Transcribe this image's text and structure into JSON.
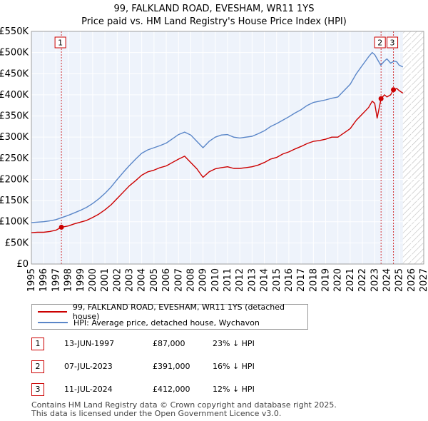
{
  "chart_data": {
    "type": "line",
    "title": "99, FALKLAND ROAD, EVESHAM, WR11 1YS",
    "subtitle": "Price paid vs. HM Land Registry's House Price Index (HPI)",
    "xlabel": "",
    "ylabel": "",
    "xlim": [
      1995,
      2027
    ],
    "ylim": [
      0,
      550000
    ],
    "grid": true,
    "x_ticks": [
      "1995",
      "1996",
      "1997",
      "1998",
      "1999",
      "2000",
      "2001",
      "2002",
      "2003",
      "2004",
      "2005",
      "2006",
      "2007",
      "2008",
      "2009",
      "2010",
      "2011",
      "2012",
      "2013",
      "2014",
      "2015",
      "2016",
      "2017",
      "2018",
      "2019",
      "2020",
      "2021",
      "2022",
      "2023",
      "2024",
      "2025",
      "2026",
      "2027"
    ],
    "y_ticks": [
      {
        "value": 0,
        "label": "£0"
      },
      {
        "value": 50000,
        "label": "£50K"
      },
      {
        "value": 100000,
        "label": "£100K"
      },
      {
        "value": 150000,
        "label": "£150K"
      },
      {
        "value": 200000,
        "label": "£200K"
      },
      {
        "value": 250000,
        "label": "£250K"
      },
      {
        "value": 300000,
        "label": "£300K"
      },
      {
        "value": 350000,
        "label": "£350K"
      },
      {
        "value": 400000,
        "label": "£400K"
      },
      {
        "value": 450000,
        "label": "£450K"
      },
      {
        "value": 500000,
        "label": "£500K"
      },
      {
        "value": 550000,
        "label": "£550K"
      }
    ],
    "projection_start": 2025.3,
    "series": [
      {
        "name": "99, FALKLAND ROAD, EVESHAM, WR11 1YS (detached house)",
        "color": "#cc0000",
        "x": [
          1995.0,
          1995.5,
          1996.0,
          1996.5,
          1997.0,
          1997.45,
          1998.0,
          1998.5,
          1999.0,
          1999.5,
          2000.0,
          2000.5,
          2001.0,
          2001.5,
          2002.0,
          2002.5,
          2003.0,
          2003.5,
          2004.0,
          2004.5,
          2005.0,
          2005.5,
          2006.0,
          2006.5,
          2007.0,
          2007.5,
          2008.0,
          2008.5,
          2009.0,
          2009.5,
          2010.0,
          2010.5,
          2011.0,
          2011.5,
          2012.0,
          2012.5,
          2013.0,
          2013.5,
          2014.0,
          2014.5,
          2015.0,
          2015.5,
          2016.0,
          2016.5,
          2017.0,
          2017.5,
          2018.0,
          2018.5,
          2019.0,
          2019.5,
          2020.0,
          2020.5,
          2021.0,
          2021.5,
          2022.0,
          2022.5,
          2022.8,
          2023.0,
          2023.2,
          2023.52,
          2023.8,
          2024.0,
          2024.3,
          2024.53,
          2024.8,
          2025.0,
          2025.3
        ],
        "values": [
          74000,
          75000,
          75000,
          77000,
          80000,
          87000,
          90000,
          95000,
          99000,
          103000,
          110000,
          118000,
          128000,
          140000,
          155000,
          170000,
          185000,
          197000,
          210000,
          218000,
          222000,
          228000,
          232000,
          240000,
          248000,
          255000,
          240000,
          225000,
          205000,
          218000,
          225000,
          228000,
          230000,
          226000,
          226000,
          228000,
          230000,
          234000,
          240000,
          248000,
          252000,
          260000,
          265000,
          272000,
          278000,
          285000,
          290000,
          292000,
          295000,
          300000,
          300000,
          310000,
          320000,
          340000,
          355000,
          370000,
          385000,
          380000,
          345000,
          391000,
          400000,
          395000,
          400000,
          412000,
          415000,
          410000,
          404000
        ]
      },
      {
        "name": "HPI: Average price, detached house, Wychavon",
        "color": "#5a86c8",
        "x": [
          1995.0,
          1995.5,
          1996.0,
          1996.5,
          1997.0,
          1997.5,
          1998.0,
          1998.5,
          1999.0,
          1999.5,
          2000.0,
          2000.5,
          2001.0,
          2001.5,
          2002.0,
          2002.5,
          2003.0,
          2003.5,
          2004.0,
          2004.5,
          2005.0,
          2005.5,
          2006.0,
          2006.5,
          2007.0,
          2007.5,
          2008.0,
          2008.5,
          2009.0,
          2009.5,
          2010.0,
          2010.5,
          2011.0,
          2011.5,
          2012.0,
          2012.5,
          2013.0,
          2013.5,
          2014.0,
          2014.5,
          2015.0,
          2015.5,
          2016.0,
          2016.5,
          2017.0,
          2017.5,
          2018.0,
          2018.5,
          2019.0,
          2019.5,
          2020.0,
          2020.5,
          2021.0,
          2021.5,
          2022.0,
          2022.5,
          2022.8,
          2023.0,
          2023.5,
          2023.8,
          2024.0,
          2024.3,
          2024.6,
          2024.8,
          2025.0,
          2025.3
        ],
        "values": [
          98000,
          99000,
          100000,
          102000,
          105000,
          110000,
          115000,
          121000,
          127000,
          134000,
          143000,
          154000,
          167000,
          182000,
          200000,
          217000,
          233000,
          248000,
          262000,
          270000,
          275000,
          280000,
          286000,
          296000,
          306000,
          312000,
          305000,
          290000,
          275000,
          290000,
          300000,
          305000,
          306000,
          300000,
          298000,
          300000,
          302000,
          308000,
          315000,
          325000,
          332000,
          340000,
          348000,
          357000,
          365000,
          375000,
          382000,
          385000,
          388000,
          392000,
          395000,
          410000,
          425000,
          450000,
          470000,
          490000,
          500000,
          495000,
          470000,
          480000,
          485000,
          475000,
          480000,
          478000,
          470000,
          466000
        ]
      }
    ],
    "markers": [
      {
        "label": "1",
        "x": 1997.45,
        "y": 87000
      },
      {
        "label": "2",
        "x": 2023.52,
        "y": 391000
      },
      {
        "label": "3",
        "x": 2024.53,
        "y": 412000
      }
    ]
  },
  "legend": {
    "items": [
      {
        "label": "99, FALKLAND ROAD, EVESHAM, WR11 1YS (detached house)",
        "color": "#cc0000"
      },
      {
        "label": "HPI: Average price, detached house, Wychavon",
        "color": "#5a86c8"
      }
    ]
  },
  "sales": [
    {
      "num": "1",
      "date": "13-JUN-1997",
      "price": "£87,000",
      "hpi": "23% ↓ HPI"
    },
    {
      "num": "2",
      "date": "07-JUL-2023",
      "price": "£391,000",
      "hpi": "16% ↓ HPI"
    },
    {
      "num": "3",
      "date": "11-JUL-2024",
      "price": "£412,000",
      "hpi": "12% ↓ HPI"
    }
  ],
  "footer": {
    "line1": "Contains HM Land Registry data © Crown copyright and database right 2025.",
    "line2": "This data is licensed under the Open Government Licence v3.0."
  }
}
